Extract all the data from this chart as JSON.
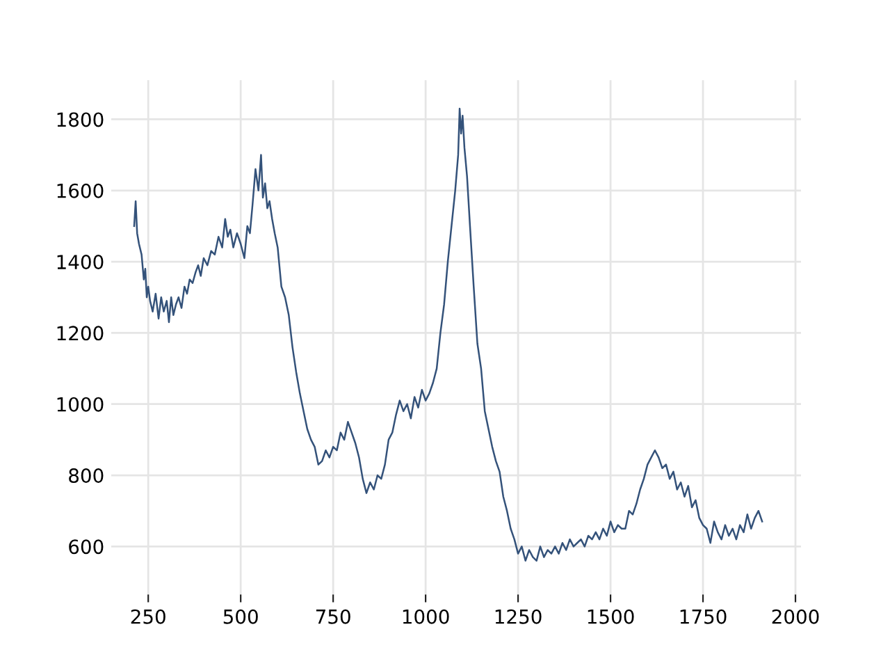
{
  "chart_data": {
    "type": "line",
    "series": [
      {
        "color": "#34527a",
        "x": [
          212,
          216,
          220,
          225,
          232,
          238,
          242,
          246,
          250,
          255,
          262,
          270,
          278,
          285,
          292,
          300,
          306,
          312,
          318,
          325,
          332,
          340,
          348,
          355,
          362,
          370,
          378,
          385,
          392,
          400,
          410,
          420,
          430,
          440,
          450,
          458,
          465,
          472,
          480,
          490,
          500,
          510,
          518,
          525,
          532,
          540,
          548,
          555,
          560,
          566,
          572,
          578,
          585,
          592,
          600,
          610,
          620,
          630,
          640,
          650,
          660,
          670,
          680,
          690,
          700,
          710,
          720,
          730,
          740,
          750,
          760,
          770,
          780,
          790,
          800,
          810,
          820,
          830,
          840,
          850,
          860,
          870,
          880,
          890,
          900,
          910,
          920,
          930,
          940,
          950,
          960,
          970,
          980,
          990,
          1000,
          1010,
          1020,
          1030,
          1040,
          1050,
          1060,
          1070,
          1080,
          1088,
          1092,
          1096,
          1100,
          1105,
          1112,
          1120,
          1130,
          1140,
          1150,
          1160,
          1170,
          1180,
          1190,
          1200,
          1210,
          1220,
          1230,
          1240,
          1250,
          1260,
          1270,
          1280,
          1290,
          1300,
          1310,
          1320,
          1330,
          1340,
          1350,
          1360,
          1370,
          1380,
          1390,
          1400,
          1410,
          1420,
          1430,
          1440,
          1450,
          1460,
          1470,
          1480,
          1490,
          1500,
          1510,
          1520,
          1530,
          1540,
          1550,
          1560,
          1570,
          1580,
          1590,
          1600,
          1610,
          1620,
          1630,
          1640,
          1650,
          1660,
          1670,
          1680,
          1690,
          1700,
          1710,
          1720,
          1730,
          1740,
          1750,
          1760,
          1770,
          1780,
          1790,
          1800,
          1810,
          1820,
          1830,
          1840,
          1850,
          1860,
          1870,
          1880,
          1890,
          1900,
          1910
        ],
        "values": [
          1500,
          1570,
          1480,
          1450,
          1420,
          1350,
          1380,
          1300,
          1330,
          1290,
          1260,
          1310,
          1240,
          1300,
          1260,
          1290,
          1230,
          1300,
          1250,
          1280,
          1300,
          1270,
          1330,
          1310,
          1350,
          1340,
          1370,
          1390,
          1360,
          1410,
          1390,
          1430,
          1420,
          1470,
          1440,
          1520,
          1470,
          1490,
          1440,
          1480,
          1450,
          1410,
          1500,
          1480,
          1560,
          1660,
          1600,
          1700,
          1580,
          1620,
          1550,
          1570,
          1520,
          1480,
          1440,
          1330,
          1300,
          1250,
          1160,
          1090,
          1030,
          980,
          930,
          900,
          880,
          830,
          840,
          870,
          850,
          880,
          870,
          920,
          900,
          950,
          920,
          890,
          850,
          790,
          750,
          780,
          760,
          800,
          790,
          830,
          900,
          920,
          970,
          1010,
          980,
          1000,
          960,
          1020,
          990,
          1040,
          1010,
          1030,
          1060,
          1100,
          1200,
          1280,
          1400,
          1500,
          1600,
          1700,
          1830,
          1760,
          1810,
          1720,
          1640,
          1500,
          1330,
          1170,
          1100,
          980,
          930,
          880,
          840,
          810,
          740,
          700,
          650,
          620,
          580,
          600,
          560,
          590,
          570,
          560,
          600,
          570,
          590,
          580,
          600,
          580,
          610,
          590,
          620,
          600,
          610,
          620,
          600,
          630,
          620,
          640,
          620,
          650,
          630,
          670,
          640,
          660,
          650,
          650,
          700,
          690,
          720,
          760,
          790,
          830,
          850,
          870,
          850,
          820,
          830,
          790,
          810,
          760,
          780,
          740,
          770,
          710,
          730,
          680,
          660,
          650,
          610,
          670,
          640,
          620,
          660,
          630,
          650,
          620,
          660,
          640,
          690,
          650,
          680,
          700,
          670
        ]
      }
    ],
    "xlim": [
      150,
      2015
    ],
    "ylim": [
      465,
      1910
    ],
    "xticks": [
      250,
      500,
      750,
      1000,
      1250,
      1500,
      1750,
      2000
    ],
    "yticks": [
      600,
      800,
      1000,
      1200,
      1400,
      1600,
      1800
    ],
    "grid": true,
    "legend": false,
    "marker": "none",
    "line_style": "solid"
  }
}
